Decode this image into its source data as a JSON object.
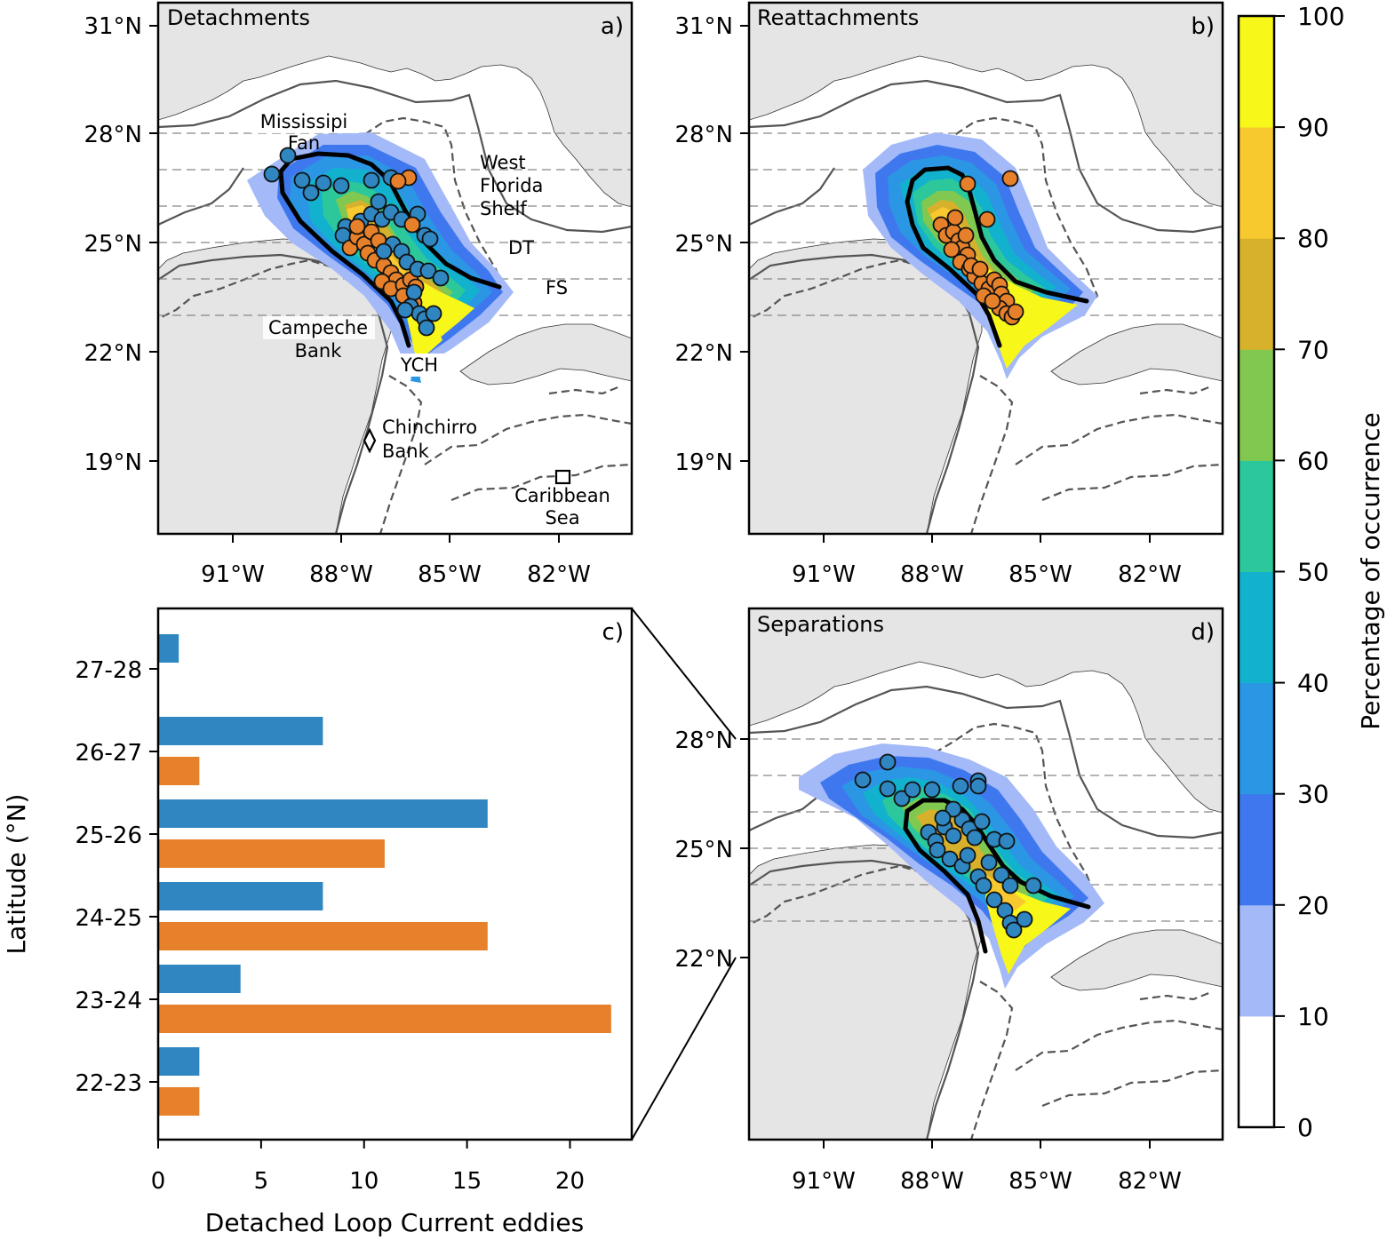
{
  "colors": {
    "orange": "#e6802a",
    "blue": "#2f86c0",
    "land": "#e5e5e5",
    "contour": "#555555",
    "grid": "#888888"
  },
  "panels": {
    "a": {
      "title": "Detachments",
      "tag": "a)"
    },
    "b": {
      "title": "Reattachments",
      "tag": "b)"
    },
    "d": {
      "title": "Separations",
      "tag": "d)"
    },
    "c": {
      "tag": "c)"
    }
  },
  "map_labels": {
    "mississippi": "Mississipi",
    "fan": "Fan",
    "west": "West",
    "florida": "Florida",
    "shelf": "Shelf",
    "dt": "DT",
    "fs": "FS",
    "campeche": "Campeche",
    "bank": "Bank",
    "ych": "YCH",
    "chinchirro": "Chinchirro",
    "bank2": "Bank",
    "caribbean": "Caribbean",
    "sea": "Sea"
  },
  "map_axes": {
    "lat_ticks_top": [
      "31°N",
      "28°N",
      "25°N",
      "22°N",
      "19°N"
    ],
    "lat_ticks_d": [
      "28°N",
      "25°N",
      "22°N"
    ],
    "lon_ticks": [
      "91°W",
      "88°W",
      "85°W",
      "82°W"
    ]
  },
  "colorbar": {
    "label": "Percentage of occurrence",
    "ticks": [
      "0",
      "10",
      "20",
      "30",
      "40",
      "50",
      "60",
      "70",
      "80",
      "90",
      "100"
    ],
    "colors": [
      "#ffffff",
      "#a3b9f8",
      "#3f78ee",
      "#2b96e4",
      "#12b2cf",
      "#2cc79a",
      "#80c850",
      "#d7b12c",
      "#f8c92f",
      "#f8f71a"
    ]
  },
  "chart_data": {
    "type": "bar",
    "orientation": "horizontal",
    "categories": [
      "22-23",
      "23-24",
      "24-25",
      "25-26",
      "26-27",
      "27-28"
    ],
    "series": [
      {
        "name": "Separations (blue)",
        "color": "#2f86c0",
        "values": [
          2,
          4,
          8,
          16,
          8,
          1
        ]
      },
      {
        "name": "Detachments (orange)",
        "color": "#e6802a",
        "values": [
          2,
          22,
          16,
          11,
          2,
          0
        ]
      }
    ],
    "xlabel": "Detached Loop Current eddies",
    "ylabel": "Latitude (°N)",
    "xticks": [
      "0",
      "5",
      "10",
      "15",
      "20"
    ],
    "xlim": [
      0,
      23
    ]
  }
}
